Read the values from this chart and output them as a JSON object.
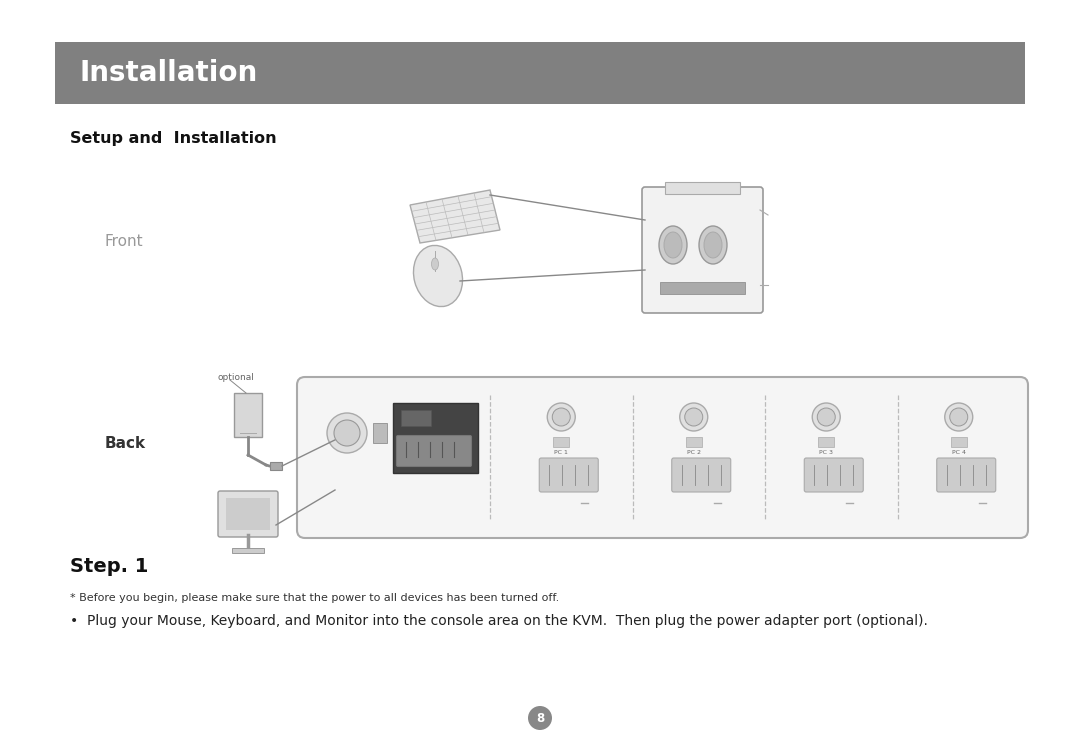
{
  "page_bg": "#ffffff",
  "header_bg": "#808080",
  "header_text": "Installation",
  "header_text_color": "#ffffff",
  "subtitle": "Setup and  Installation",
  "subtitle_color": "#111111",
  "front_label": "Front",
  "front_label_color": "#999999",
  "back_label": "Back",
  "back_label_color": "#333333",
  "step_label": "Step. 1",
  "step_label_color": "#111111",
  "optional_label": "optional",
  "note_line1": "* Before you begin, please make sure that the power to all devices has been turned off.",
  "note_line2": "•  Plug your Mouse, Keyboard, and Monitor into the console area on the KVM.  Then plug the power adapter port (optional).",
  "page_number": "8",
  "page_number_bg": "#888888",
  "page_number_color": "#ffffff"
}
